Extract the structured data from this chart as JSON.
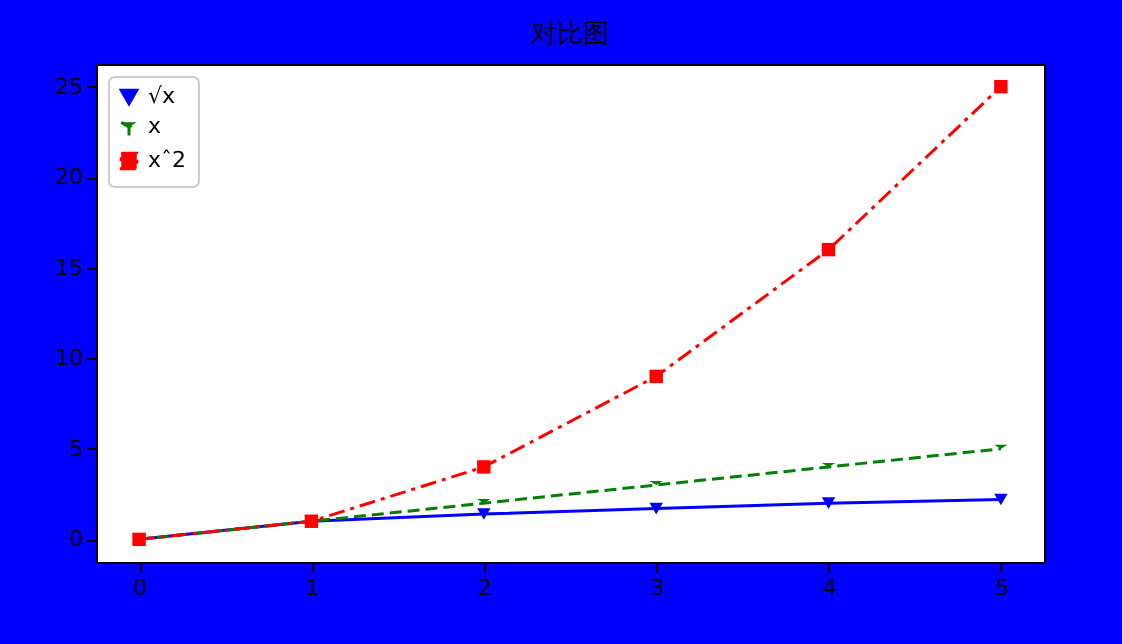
{
  "chart_data": {
    "type": "line",
    "title": "对比图",
    "x": [
      0,
      1,
      2,
      3,
      4,
      5
    ],
    "series": [
      {
        "name": "√x",
        "color": "#0000ff",
        "values": [
          0,
          1,
          1.4,
          1.7,
          2,
          2.2
        ],
        "marker": "triangle",
        "line_style": "solid"
      },
      {
        "name": "x",
        "color": "#008000",
        "values": [
          0,
          1,
          2,
          3,
          4,
          5
        ],
        "marker": "cross",
        "line_style": "dashed"
      },
      {
        "name": "xˆ2",
        "color": "#ff0000",
        "values": [
          0,
          1,
          4,
          9,
          16,
          25
        ],
        "marker": "square",
        "line_style": "dashdot"
      }
    ],
    "xlim": [
      -0.25,
      5.25
    ],
    "xticks": [
      0,
      1,
      2,
      3,
      4,
      5
    ],
    "ylim": [
      -1.25,
      26.25
    ],
    "yticks": [
      0,
      5,
      10,
      15,
      20,
      25
    ],
    "grid": false,
    "legend": "top left"
  }
}
